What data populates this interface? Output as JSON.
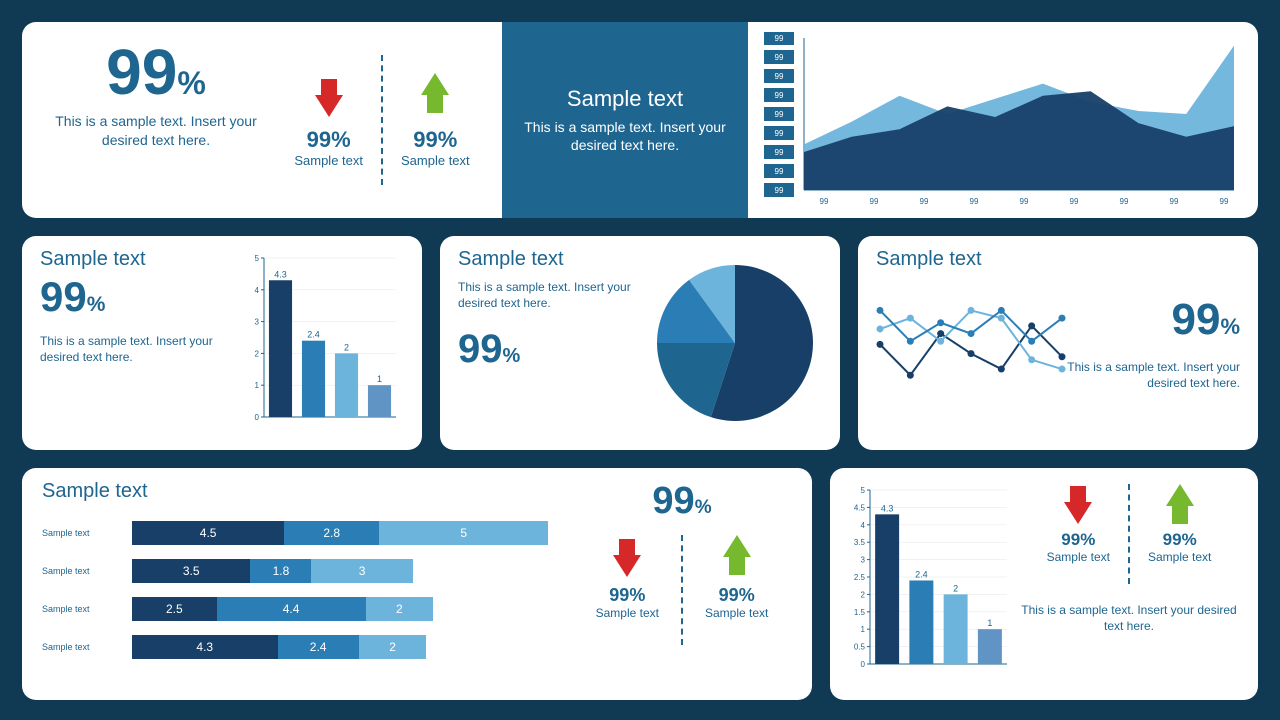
{
  "colors": {
    "bg": "#103954",
    "card": "#ffffff",
    "primary": "#1e6590",
    "dark": "#173f68",
    "mid": "#2b7eb5",
    "light": "#6db4dc",
    "pale": "#a7d4ec",
    "red": "#d62828",
    "green": "#76b92f"
  },
  "top": {
    "main": {
      "value": "99",
      "unit": "%",
      "desc": "This is a sample text. Insert your desired text here."
    },
    "down": {
      "value": "99%",
      "label": "Sample text"
    },
    "up": {
      "value": "99%",
      "label": "Sample text"
    },
    "banner": {
      "title": "Sample text",
      "desc": "This is a sample text. Insert your desired text here."
    },
    "area_chart": {
      "type": "area",
      "y_ticks": [
        "99",
        "99",
        "99",
        "99",
        "99",
        "99",
        "99",
        "99",
        "99"
      ],
      "x_ticks": [
        "99",
        "99",
        "99",
        "99",
        "99",
        "99",
        "99",
        "99",
        "99"
      ],
      "series_back": {
        "color": "#6db4dc",
        "values": [
          30,
          45,
          62,
          50,
          60,
          70,
          58,
          52,
          50,
          95
        ]
      },
      "series_front": {
        "color": "#173f68",
        "values": [
          25,
          35,
          40,
          55,
          48,
          62,
          65,
          44,
          35,
          42
        ]
      },
      "y_tick_bg": "#1e6590"
    }
  },
  "mid": {
    "bar_card": {
      "title": "Sample text",
      "value": "99",
      "unit": "%",
      "desc": "This is a sample text. Insert your desired text here.",
      "chart": {
        "type": "bar",
        "ylim": [
          0,
          5
        ],
        "ytick_step": 1,
        "values": [
          4.3,
          2.4,
          2,
          1
        ],
        "labels": [
          "4.3",
          "2.4",
          "2",
          "1"
        ],
        "colors": [
          "#173f68",
          "#2b7eb5",
          "#6db4dc",
          "#5f94c4"
        ]
      }
    },
    "pie_card": {
      "title": "Sample text",
      "desc": "This is a sample text. Insert your desired text here.",
      "value": "99",
      "unit": "%",
      "chart": {
        "type": "pie",
        "slices": [
          {
            "v": 55,
            "c": "#173f68"
          },
          {
            "v": 20,
            "c": "#1e6590"
          },
          {
            "v": 15,
            "c": "#2b7eb5"
          },
          {
            "v": 10,
            "c": "#6db4dc"
          }
        ]
      }
    },
    "line_card": {
      "title": "Sample text",
      "value": "99",
      "unit": "%",
      "desc": "This is a sample text. Insert your desired text here.",
      "chart": {
        "type": "line",
        "series": [
          {
            "c": "#173f68",
            "pts": [
              38,
              18,
              45,
              32,
              22,
              50,
              30
            ]
          },
          {
            "c": "#6db4dc",
            "pts": [
              48,
              55,
              40,
              60,
              55,
              28,
              22
            ]
          },
          {
            "c": "#2b7eb5",
            "pts": [
              60,
              40,
              52,
              45,
              60,
              40,
              55
            ]
          }
        ]
      }
    }
  },
  "bottom": {
    "stacked": {
      "title": "Sample text",
      "rows": [
        {
          "label": "Sample text",
          "segs": [
            {
              "v": 4.5,
              "c": "#173f68"
            },
            {
              "v": 2.8,
              "c": "#2b7eb5"
            },
            {
              "v": 5,
              "c": "#6db4dc"
            }
          ]
        },
        {
          "label": "Sample text",
          "segs": [
            {
              "v": 3.5,
              "c": "#173f68"
            },
            {
              "v": 1.8,
              "c": "#2b7eb5"
            },
            {
              "v": 3,
              "c": "#6db4dc"
            }
          ]
        },
        {
          "label": "Sample text",
          "segs": [
            {
              "v": 2.5,
              "c": "#173f68"
            },
            {
              "v": 4.4,
              "c": "#2b7eb5"
            },
            {
              "v": 2,
              "c": "#6db4dc"
            }
          ]
        },
        {
          "label": "Sample text",
          "segs": [
            {
              "v": 4.3,
              "c": "#173f68"
            },
            {
              "v": 2.4,
              "c": "#2b7eb5"
            },
            {
              "v": 2,
              "c": "#6db4dc"
            }
          ]
        }
      ],
      "max_total": 13
    },
    "kpi": {
      "value": "99",
      "unit": "%",
      "down": {
        "value": "99%",
        "label": "Sample text"
      },
      "up": {
        "value": "99%",
        "label": "Sample text"
      }
    },
    "bar2": {
      "chart": {
        "type": "bar",
        "ylim": [
          0,
          5
        ],
        "ytick_step": 0.5,
        "values": [
          4.3,
          2.4,
          2,
          1
        ],
        "labels": [
          "4.3",
          "2.4",
          "2",
          "1"
        ],
        "colors": [
          "#173f68",
          "#2b7eb5",
          "#6db4dc",
          "#5f94c4"
        ]
      },
      "down": {
        "value": "99%",
        "label": "Sample text"
      },
      "up": {
        "value": "99%",
        "label": "Sample text"
      },
      "desc": "This is a sample text. Insert your desired text here."
    }
  }
}
